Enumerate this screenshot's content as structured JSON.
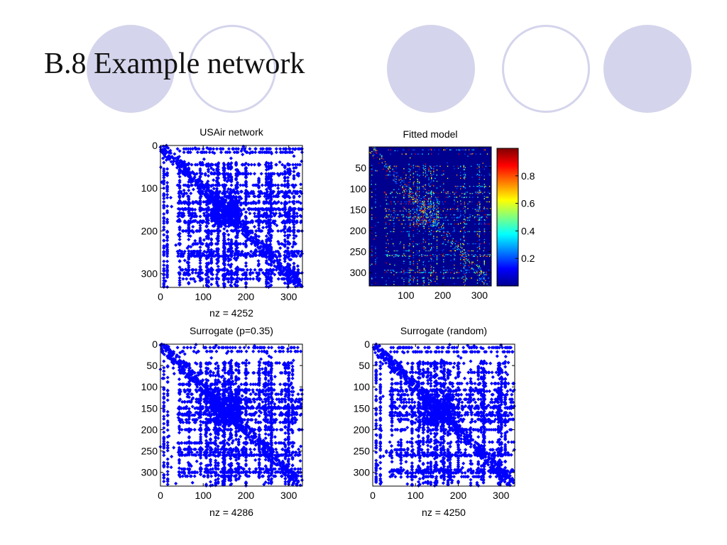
{
  "slide": {
    "title": "B.8 Example network"
  },
  "colors": {
    "decor": "#d4d4ec",
    "marker": "#0000ff",
    "heatmap_background": "#00008f"
  },
  "chart_data": [
    {
      "type": "scatter",
      "title": "USAir network",
      "xlabel": "nz = 4252",
      "xlim": [
        0,
        332
      ],
      "ylim": [
        0,
        332
      ],
      "y_reversed": true,
      "xticks": [
        0,
        100,
        200,
        300
      ],
      "yticks": [
        0,
        100,
        200,
        300
      ],
      "grid": false
    },
    {
      "type": "heatmap",
      "title": "Fitted model",
      "xlabel": "",
      "xlim": [
        0,
        332
      ],
      "ylim": [
        0,
        332
      ],
      "y_reversed": true,
      "xticks": [
        100,
        200,
        300
      ],
      "yticks": [
        50,
        100,
        150,
        200,
        250,
        300
      ],
      "colorbar": {
        "range": [
          0,
          1
        ],
        "ticks": [
          0.2,
          0.4,
          0.6,
          0.8
        ]
      },
      "grid": false
    },
    {
      "type": "scatter",
      "title": "Surrogate (p=0.35)",
      "xlabel": "nz = 4286",
      "xlim": [
        0,
        332
      ],
      "ylim": [
        0,
        332
      ],
      "y_reversed": true,
      "xticks": [
        0,
        100,
        200,
        300
      ],
      "yticks": [
        0,
        50,
        100,
        150,
        200,
        250,
        300
      ],
      "grid": false
    },
    {
      "type": "scatter",
      "title": "Surrogate (random)",
      "xlabel": "nz = 4250",
      "xlim": [
        0,
        332
      ],
      "ylim": [
        0,
        332
      ],
      "y_reversed": true,
      "xticks": [
        0,
        100,
        200,
        300
      ],
      "yticks": [
        0,
        50,
        100,
        150,
        200,
        250,
        300
      ],
      "grid": false
    }
  ]
}
